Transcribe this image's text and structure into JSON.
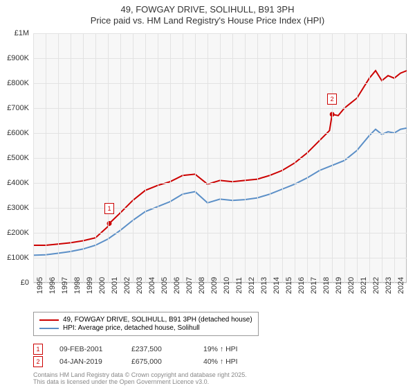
{
  "title": {
    "line1": "49, FOWGAY DRIVE, SOLIHULL, B91 3PH",
    "line2": "Price paid vs. HM Land Registry's House Price Index (HPI)",
    "fontsize": 13,
    "color": "#333333"
  },
  "chart": {
    "type": "line",
    "background_color": "#f7f7f7",
    "grid_color": "#e2e2e2",
    "border_color": "#bbbbbb",
    "x": {
      "min": 1995,
      "max": 2025,
      "ticks": [
        1995,
        1996,
        1997,
        1998,
        1999,
        2000,
        2001,
        2002,
        2003,
        2004,
        2005,
        2006,
        2007,
        2008,
        2009,
        2010,
        2011,
        2012,
        2013,
        2014,
        2015,
        2016,
        2017,
        2018,
        2019,
        2020,
        2021,
        2022,
        2023,
        2024
      ],
      "tick_fontsize": 11
    },
    "y": {
      "min": 0,
      "max": 1000000,
      "ticks": [
        0,
        100000,
        200000,
        300000,
        400000,
        500000,
        600000,
        700000,
        800000,
        900000,
        1000000
      ],
      "tick_labels": [
        "£0",
        "£100K",
        "£200K",
        "£300K",
        "£400K",
        "£500K",
        "£600K",
        "£700K",
        "£800K",
        "£900K",
        "£1M"
      ],
      "tick_fontsize": 11
    },
    "series": [
      {
        "name": "price_paid",
        "label": "49, FOWGAY DRIVE, SOLIHULL, B91 3PH (detached house)",
        "color": "#cc0000",
        "line_width": 2,
        "points": [
          [
            1995,
            150000
          ],
          [
            1996,
            150000
          ],
          [
            1997,
            155000
          ],
          [
            1998,
            160000
          ],
          [
            1999,
            168000
          ],
          [
            2000,
            180000
          ],
          [
            2001,
            225000
          ],
          [
            2001.11,
            237500
          ],
          [
            2002,
            280000
          ],
          [
            2003,
            330000
          ],
          [
            2004,
            370000
          ],
          [
            2005,
            390000
          ],
          [
            2006,
            405000
          ],
          [
            2007,
            430000
          ],
          [
            2008,
            435000
          ],
          [
            2009,
            395000
          ],
          [
            2010,
            410000
          ],
          [
            2011,
            405000
          ],
          [
            2012,
            410000
          ],
          [
            2013,
            415000
          ],
          [
            2014,
            430000
          ],
          [
            2015,
            450000
          ],
          [
            2016,
            480000
          ],
          [
            2017,
            520000
          ],
          [
            2018,
            570000
          ],
          [
            2018.8,
            610000
          ],
          [
            2019.01,
            675000
          ],
          [
            2019.5,
            670000
          ],
          [
            2020,
            700000
          ],
          [
            2021,
            740000
          ],
          [
            2022,
            820000
          ],
          [
            2022.5,
            850000
          ],
          [
            2023,
            810000
          ],
          [
            2023.5,
            830000
          ],
          [
            2024,
            820000
          ],
          [
            2024.5,
            840000
          ],
          [
            2025,
            850000
          ]
        ]
      },
      {
        "name": "hpi",
        "label": "HPI: Average price, detached house, Solihull",
        "color": "#5b8fc7",
        "line_width": 2,
        "points": [
          [
            1995,
            110000
          ],
          [
            1996,
            112000
          ],
          [
            1997,
            118000
          ],
          [
            1998,
            125000
          ],
          [
            1999,
            135000
          ],
          [
            2000,
            150000
          ],
          [
            2001,
            175000
          ],
          [
            2002,
            210000
          ],
          [
            2003,
            250000
          ],
          [
            2004,
            285000
          ],
          [
            2005,
            305000
          ],
          [
            2006,
            325000
          ],
          [
            2007,
            355000
          ],
          [
            2008,
            365000
          ],
          [
            2009,
            320000
          ],
          [
            2010,
            335000
          ],
          [
            2011,
            330000
          ],
          [
            2012,
            333000
          ],
          [
            2013,
            340000
          ],
          [
            2014,
            355000
          ],
          [
            2015,
            375000
          ],
          [
            2016,
            395000
          ],
          [
            2017,
            420000
          ],
          [
            2018,
            450000
          ],
          [
            2019,
            470000
          ],
          [
            2020,
            490000
          ],
          [
            2021,
            530000
          ],
          [
            2022,
            590000
          ],
          [
            2022.5,
            615000
          ],
          [
            2023,
            595000
          ],
          [
            2023.5,
            605000
          ],
          [
            2024,
            600000
          ],
          [
            2024.5,
            615000
          ],
          [
            2025,
            620000
          ]
        ]
      }
    ],
    "sale_markers": [
      {
        "n": "1",
        "year": 2001.11,
        "price": 237500,
        "color": "#cc0000"
      },
      {
        "n": "2",
        "year": 2019.01,
        "price": 675000,
        "color": "#cc0000"
      }
    ]
  },
  "legend": {
    "border_color": "#999999",
    "fontsize": 10
  },
  "sales": [
    {
      "n": "1",
      "date": "09-FEB-2001",
      "price": "£237,500",
      "delta": "19% ↑ HPI",
      "color": "#cc0000"
    },
    {
      "n": "2",
      "date": "04-JAN-2019",
      "price": "£675,000",
      "delta": "40% ↑ HPI",
      "color": "#cc0000"
    }
  ],
  "footer": {
    "line1": "Contains HM Land Registry data © Crown copyright and database right 2025.",
    "line2": "This data is licensed under the Open Government Licence v3.0.",
    "color": "#888888",
    "fontsize": 9
  }
}
